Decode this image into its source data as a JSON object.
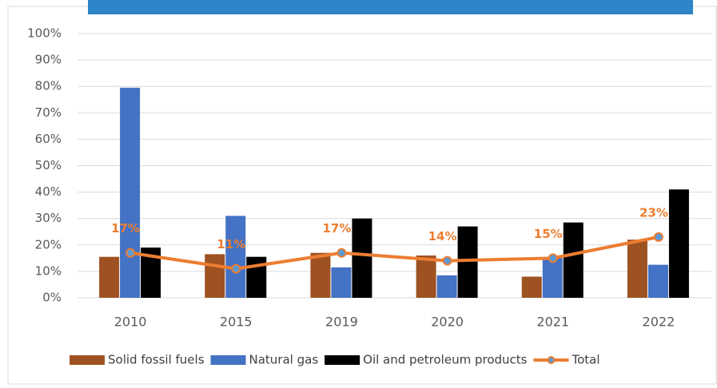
{
  "chart_data": {
    "type": "bar",
    "categories": [
      "2010",
      "2015",
      "2019",
      "2020",
      "2021",
      "2022"
    ],
    "series": [
      {
        "name": "Solid fossil fuels",
        "color": "#9e5222",
        "values": [
          15.5,
          16.5,
          17,
          16,
          8,
          22
        ]
      },
      {
        "name": "Natural gas",
        "color": "#4472c4",
        "values": [
          79.5,
          31,
          11.5,
          8.5,
          15,
          12.5
        ]
      },
      {
        "name": "Oil and petroleum products",
        "color": "#000000",
        "values": [
          19,
          15.5,
          30,
          27,
          28.5,
          41
        ]
      },
      {
        "name": "Total",
        "type": "line",
        "color": "#ed7d31",
        "values": [
          17,
          11,
          17,
          14,
          15,
          23
        ],
        "value_labels": [
          "17%",
          "11%",
          "17%",
          "14%",
          "15%",
          "23%"
        ]
      }
    ],
    "ylim": [
      0,
      100
    ],
    "yticks": [
      {
        "value": 0,
        "label": "0%"
      },
      {
        "value": 10,
        "label": "10%"
      },
      {
        "value": 20,
        "label": "20%"
      },
      {
        "value": 30,
        "label": "30%"
      },
      {
        "value": 40,
        "label": "40%"
      },
      {
        "value": 50,
        "label": "50%"
      },
      {
        "value": 60,
        "label": "60%"
      },
      {
        "value": 70,
        "label": "70%"
      },
      {
        "value": 80,
        "label": "80%"
      },
      {
        "value": 90,
        "label": "90%"
      },
      {
        "value": 100,
        "label": "100%"
      }
    ],
    "grid": true,
    "legend": "bottom"
  }
}
